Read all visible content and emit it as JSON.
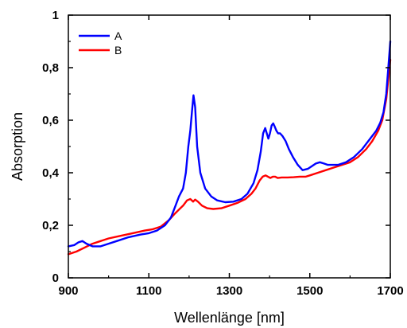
{
  "chart_data": {
    "type": "line",
    "xlabel": "Wellenlänge [nm]",
    "ylabel": "Absorption",
    "xlim": [
      900,
      1700
    ],
    "ylim": [
      0,
      1
    ],
    "x_ticks": [
      900,
      1100,
      1300,
      1500,
      1700
    ],
    "x_tick_labels": [
      "900",
      "1100",
      "1300",
      "1500",
      "1700"
    ],
    "y_ticks": [
      0,
      0.2,
      0.4,
      0.6,
      0.8,
      1
    ],
    "y_tick_labels": [
      "0",
      "0,2",
      "0,4",
      "0,6",
      "0,8",
      "1"
    ],
    "grid": false,
    "legend": "top-left",
    "series": [
      {
        "name": "A",
        "color": "#0000ff",
        "x": [
          900,
          915,
          925,
          935,
          945,
          960,
          980,
          1000,
          1020,
          1050,
          1080,
          1100,
          1120,
          1140,
          1155,
          1165,
          1175,
          1185,
          1192,
          1198,
          1203,
          1207,
          1211,
          1215,
          1220,
          1228,
          1240,
          1255,
          1270,
          1290,
          1310,
          1330,
          1345,
          1360,
          1370,
          1378,
          1384,
          1389,
          1393,
          1397,
          1401,
          1405,
          1409,
          1413,
          1417,
          1421,
          1426,
          1432,
          1440,
          1448,
          1458,
          1470,
          1482,
          1495,
          1505,
          1515,
          1525,
          1535,
          1545,
          1555,
          1570,
          1590,
          1610,
          1630,
          1650,
          1665,
          1675,
          1683,
          1690,
          1695,
          1700
        ],
        "y": [
          0.12,
          0.125,
          0.135,
          0.14,
          0.13,
          0.12,
          0.12,
          0.13,
          0.14,
          0.155,
          0.165,
          0.17,
          0.18,
          0.2,
          0.23,
          0.27,
          0.31,
          0.34,
          0.4,
          0.5,
          0.56,
          0.63,
          0.695,
          0.65,
          0.5,
          0.4,
          0.34,
          0.31,
          0.295,
          0.288,
          0.29,
          0.3,
          0.32,
          0.36,
          0.41,
          0.48,
          0.55,
          0.57,
          0.55,
          0.53,
          0.55,
          0.58,
          0.588,
          0.575,
          0.56,
          0.55,
          0.55,
          0.54,
          0.52,
          0.49,
          0.46,
          0.43,
          0.41,
          0.415,
          0.425,
          0.435,
          0.44,
          0.435,
          0.43,
          0.43,
          0.43,
          0.44,
          0.46,
          0.49,
          0.53,
          0.56,
          0.59,
          0.63,
          0.7,
          0.8,
          0.9
        ]
      },
      {
        "name": "B",
        "color": "#ff0000",
        "x": [
          900,
          920,
          940,
          960,
          980,
          1000,
          1030,
          1060,
          1090,
          1110,
          1130,
          1150,
          1165,
          1175,
          1185,
          1195,
          1203,
          1210,
          1215,
          1222,
          1232,
          1245,
          1260,
          1280,
          1300,
          1320,
          1340,
          1355,
          1365,
          1375,
          1383,
          1390,
          1396,
          1402,
          1408,
          1414,
          1420,
          1430,
          1445,
          1460,
          1475,
          1490,
          1500,
          1520,
          1540,
          1560,
          1580,
          1600,
          1620,
          1640,
          1655,
          1670,
          1680,
          1690,
          1700
        ],
        "y": [
          0.09,
          0.1,
          0.115,
          0.13,
          0.14,
          0.15,
          0.16,
          0.17,
          0.18,
          0.185,
          0.195,
          0.22,
          0.245,
          0.26,
          0.275,
          0.295,
          0.3,
          0.29,
          0.298,
          0.29,
          0.275,
          0.265,
          0.262,
          0.265,
          0.275,
          0.285,
          0.3,
          0.32,
          0.34,
          0.37,
          0.385,
          0.39,
          0.385,
          0.38,
          0.385,
          0.385,
          0.38,
          0.382,
          0.382,
          0.383,
          0.385,
          0.385,
          0.39,
          0.4,
          0.41,
          0.42,
          0.43,
          0.44,
          0.46,
          0.49,
          0.52,
          0.56,
          0.6,
          0.68,
          0.83
        ]
      }
    ]
  }
}
